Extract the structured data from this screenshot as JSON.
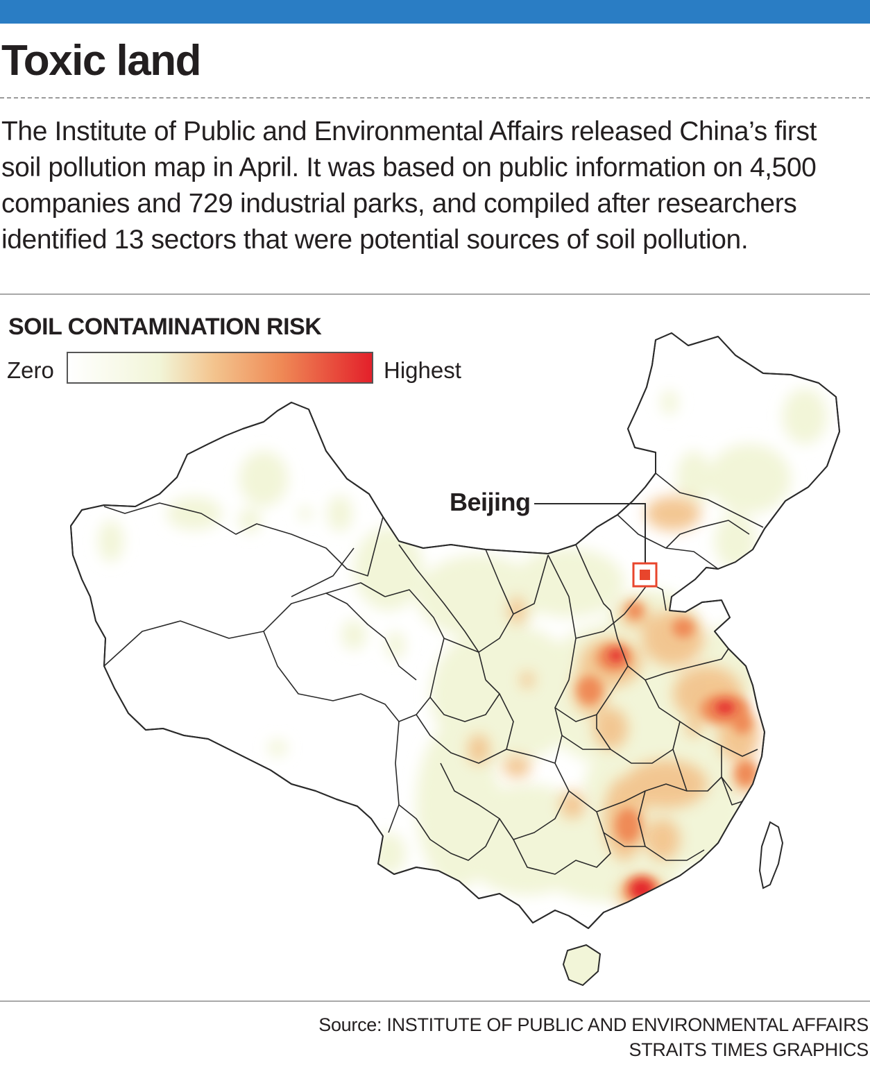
{
  "colors": {
    "top_bar": "#2a7dc4",
    "land_fill": "#ffffff",
    "border_stroke": "#2a2a2a",
    "risk_low": "#f2f5d8",
    "risk_mid": "#f3c48e",
    "risk_high_mid": "#ef8a56",
    "risk_highest": "#e3202a",
    "beijing_marker": "#e8452c"
  },
  "header": {
    "title": "Toxic land",
    "intro": "The Institute of Public and Environmental Affairs released China’s first soil pollution map in April. It was based on public information on 4,500 companies and 729 industrial parks, and compiled after researchers identified 13 sectors that were potential sources of soil pollution."
  },
  "legend": {
    "title": "SOIL CONTAMINATION RISK",
    "low_label": "Zero",
    "high_label": "Highest"
  },
  "map": {
    "marker_label": "Beijing",
    "marker_icon": "square-marker-icon"
  },
  "footer": {
    "source": "Source: INSTITUTE OF PUBLIC AND ENVIRONMENTAL AFFAIRS",
    "credit": "STRAITS TIMES GRAPHICS"
  }
}
